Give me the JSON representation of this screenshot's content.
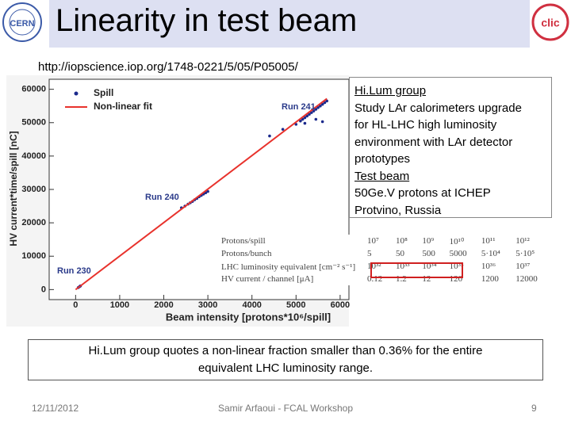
{
  "header": {
    "title": "Linearity in test beam",
    "logos": [
      "CERN",
      "clic"
    ],
    "url": "http://iopscience.iop.org/1748-0221/5/05/P05005/"
  },
  "chart_data": {
    "type": "scatter",
    "y_label": "HV current*time/spill [nC]",
    "x_label": "Beam intensity [protons*10⁶/spill]",
    "xlim": [
      -600,
      6200
    ],
    "ylim": [
      -3000,
      63000
    ],
    "xticks": [
      0,
      1000,
      2000,
      3000,
      4000,
      5000,
      6000
    ],
    "yticks": [
      0,
      10000,
      20000,
      30000,
      40000,
      50000,
      60000
    ],
    "legend": "upper left",
    "grid": false,
    "series": [
      {
        "name": "Spill",
        "color": "#1c2a8c",
        "mode": "markers",
        "x": [
          60,
          90,
          110,
          2400,
          2480,
          2550,
          2600,
          2650,
          2700,
          2750,
          2800,
          2850,
          2900,
          2950,
          3000,
          4400,
          4700,
          5000,
          5100,
          5150,
          5200,
          5250,
          5300,
          5350,
          5400,
          5450,
          5500,
          5550,
          5600,
          5650,
          5700,
          5200,
          5450,
          5600
        ],
        "y": [
          600,
          900,
          1100,
          24500,
          25000,
          25600,
          26000,
          26400,
          26900,
          27300,
          27800,
          28200,
          28600,
          29000,
          29400,
          46000,
          48000,
          49500,
          50500,
          51000,
          51500,
          52000,
          52500,
          53000,
          53500,
          54000,
          54500,
          55000,
          55500,
          56000,
          56500,
          49800,
          51000,
          50300
        ]
      },
      {
        "name": "Non-linear fit",
        "color": "#e8322c",
        "mode": "line",
        "x": [
          0,
          5700
        ],
        "y": [
          0,
          57200
        ]
      }
    ],
    "annotations": [
      "Run 241",
      "Run 240",
      "Run 230"
    ]
  },
  "textbox": {
    "lines": [
      "Hi.Lum group",
      "Study LAr calorimeters upgrade",
      "for HL-LHC high luminosity",
      "environment with LAr detector",
      "prototypes",
      "Test beam",
      "50Ge.V protons at ICHEP",
      "Protvino, Russia"
    ]
  },
  "table": {
    "rows": [
      [
        "Protons/spill",
        "10⁷",
        "10⁸",
        "10⁹",
        "10¹⁰",
        "10¹¹",
        "10¹²"
      ],
      [
        "Protons/bunch",
        "5",
        "50",
        "500",
        "5000",
        "5·10⁴",
        "5·10⁵"
      ],
      [
        "LHC luminosity equivalent [cm⁻² s⁻¹]",
        "10³²",
        "10³³",
        "10³⁴",
        "10³⁵",
        "10³⁶",
        "10³⁷"
      ],
      [
        "HV current / channel [μA]",
        "0.12",
        "1.2",
        "12",
        "120",
        "1200",
        "12000"
      ]
    ]
  },
  "note": {
    "lines": [
      "Hi.Lum group quotes a non-linear fraction smaller than 0.36% for the entire",
      "equivalent LHC luminosity range."
    ]
  },
  "footer": {
    "date": "12/11/2012",
    "author": "Samir Arfaoui - FCAL Workshop",
    "page": "9"
  }
}
